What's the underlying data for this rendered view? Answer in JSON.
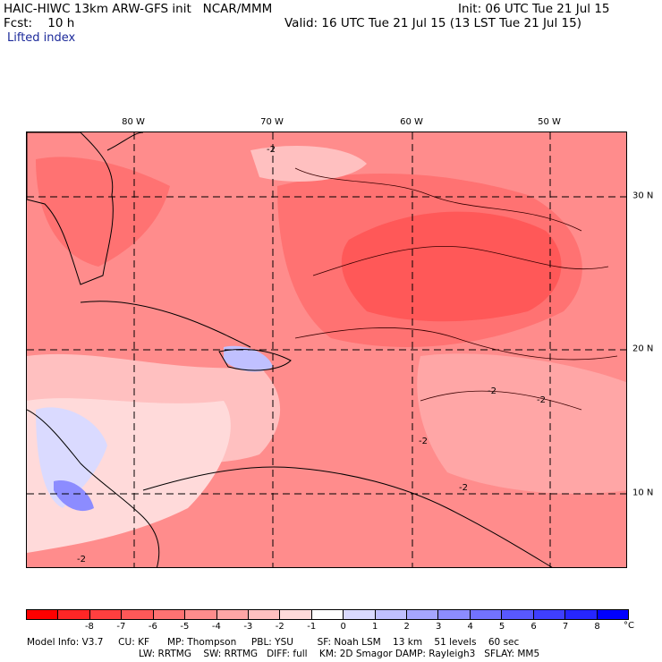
{
  "header": {
    "title_left": "HAIC-HIWC 13km ARW-GFS init   NCAR/MMM",
    "init": "Init: 06 UTC Tue 21 Jul 15",
    "fcst": "Fcst:    10 h",
    "valid": "Valid: 16 UTC Tue 21 Jul 15 (13 LST Tue 21 Jul 15)",
    "field": "Lifted index"
  },
  "map": {
    "lon_labels": [
      "80 W",
      "70 W",
      "60 W",
      "50 W"
    ],
    "lat_labels": [
      "30 N",
      "20 N",
      "10 N"
    ],
    "contour_labels": [
      "-2",
      "-2",
      "-2",
      "-2",
      "-2",
      "-2"
    ],
    "field_name": "Lifted index"
  },
  "colorbar": {
    "colors": [
      "#ff0000",
      "#ff2626",
      "#ff3f3f",
      "#ff5858",
      "#ff7272",
      "#ff8c8c",
      "#ffa6a6",
      "#ffc0c0",
      "#ffdada",
      "#ffffff",
      "#dadaff",
      "#c0c0ff",
      "#a6a6ff",
      "#8c8cff",
      "#7272ff",
      "#5858ff",
      "#3f3fff",
      "#2626ff",
      "#0000ff"
    ],
    "ticks": [
      "-8",
      "-7",
      "-6",
      "-5",
      "-4",
      "-3",
      "-2",
      "-1",
      "0",
      "1",
      "2",
      "3",
      "4",
      "5",
      "6",
      "7",
      "8"
    ],
    "unit": "°C"
  },
  "model_info": {
    "line1": "Model Info: V3.7     CU: KF      MP: Thompson     PBL: YSU        SF: Noah LSM    13 km    51 levels    60 sec",
    "line2": "LW: RRTMG    SW: RRTMG   DIFF: full    KM: 2D Smagor DAMP: Rayleigh3   SFLAY: MM5"
  }
}
